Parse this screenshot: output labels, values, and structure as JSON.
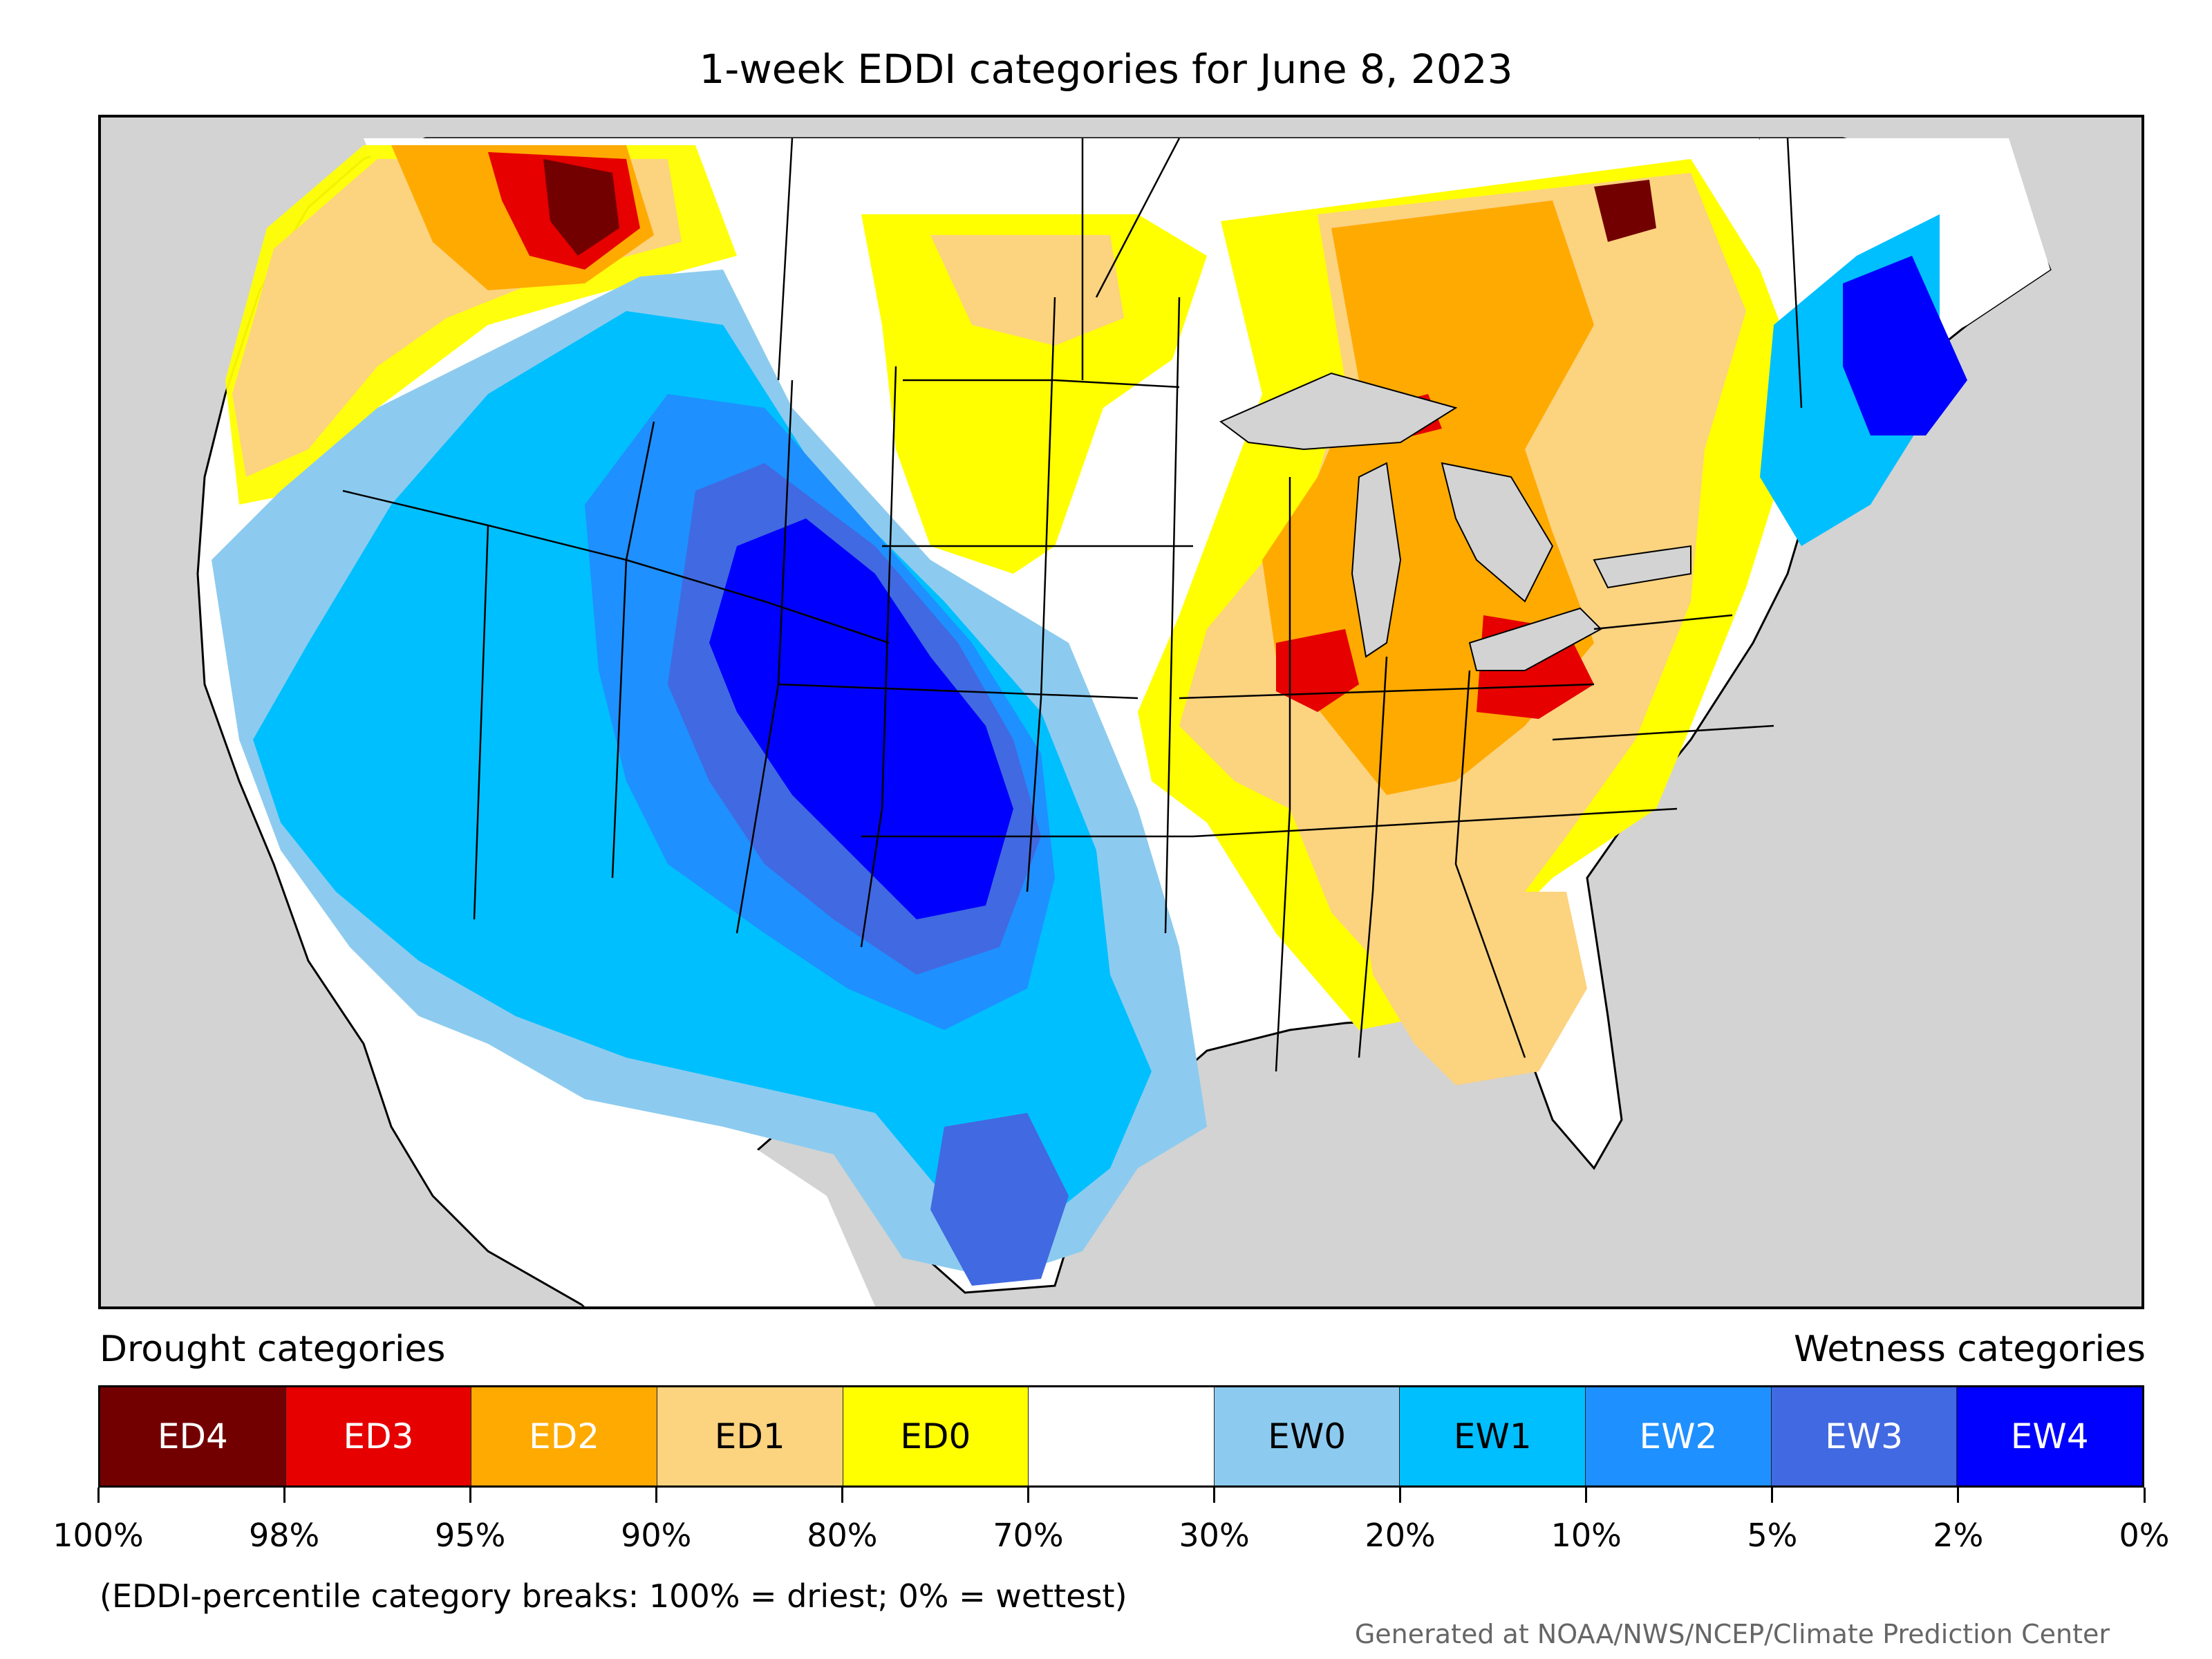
{
  "title": "1-week EDDI categories for June 8, 2023",
  "legend": {
    "drought_heading": "Drought categories",
    "wetness_heading": "Wetness categories",
    "categories": [
      {
        "label": "ED4",
        "color": "#730000",
        "text_color": "#ffffff"
      },
      {
        "label": "ED3",
        "color": "#e60000",
        "text_color": "#ffffff"
      },
      {
        "label": "ED2",
        "color": "#ffaa00",
        "text_color": "#ffffff"
      },
      {
        "label": "ED1",
        "color": "#fcd37f",
        "text_color": "#000000"
      },
      {
        "label": "ED0",
        "color": "#ffff00",
        "text_color": "#000000"
      },
      {
        "label": "",
        "color": "#ffffff",
        "text_color": "#000000"
      },
      {
        "label": "EW0",
        "color": "#8ccbef",
        "text_color": "#000000"
      },
      {
        "label": "EW1",
        "color": "#00bfff",
        "text_color": "#000000"
      },
      {
        "label": "EW2",
        "color": "#1e90ff",
        "text_color": "#ffffff"
      },
      {
        "label": "EW3",
        "color": "#4169e1",
        "text_color": "#ffffff"
      },
      {
        "label": "EW4",
        "color": "#0000ff",
        "text_color": "#ffffff"
      }
    ],
    "breaks": [
      "100%",
      "98%",
      "95%",
      "90%",
      "80%",
      "70%",
      "30%",
      "20%",
      "10%",
      "5%",
      "2%",
      "0%"
    ]
  },
  "note": "(EDDI-percentile category breaks: 100% = driest; 0% = wettest)",
  "credit": "Generated at NOAA/NWS/NCEP/Climate Prediction Center",
  "map_colors": {
    "ocean": "#d3d3d3",
    "land": "#ffffff",
    "lakes": "#d3d3d3",
    "borders": "#000000"
  }
}
